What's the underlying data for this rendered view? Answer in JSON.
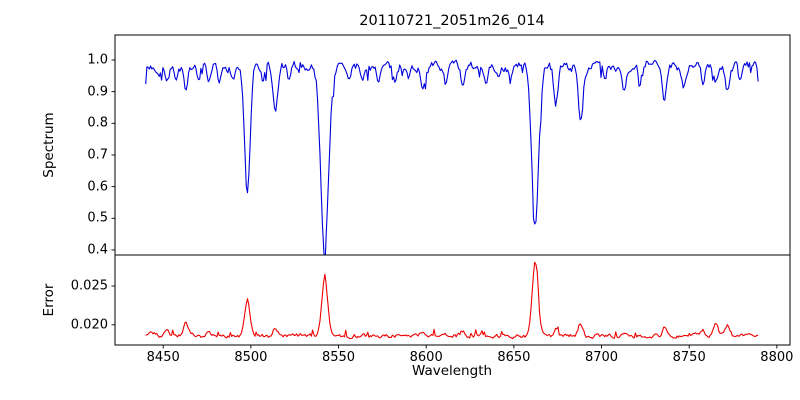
{
  "figure": {
    "background": "#ffffff"
  },
  "chart_data": {
    "type": "line",
    "title": "20110721_2051m26_014",
    "xlabel": "Wavelength",
    "legend": "none",
    "grid": false,
    "xlim": [
      8422.5,
      8807.5
    ],
    "x_data_range": [
      8440,
      8790
    ],
    "sample_step": 0.7,
    "noise_seed": 7,
    "x_ticks": [
      {
        "value": 8450,
        "label": "8450"
      },
      {
        "value": 8500,
        "label": "8500"
      },
      {
        "value": 8550,
        "label": "8550"
      },
      {
        "value": 8600,
        "label": "8600"
      },
      {
        "value": 8650,
        "label": "8650"
      },
      {
        "value": 8700,
        "label": "8700"
      },
      {
        "value": 8750,
        "label": "8750"
      },
      {
        "value": 8800,
        "label": "8800"
      }
    ],
    "panels": [
      {
        "name": "spectrum",
        "ylabel": "Spectrum",
        "ylim": [
          0.384,
          1.079
        ],
        "y_ticks": [
          {
            "value": 1.0,
            "label": "1.0"
          },
          {
            "value": 0.9,
            "label": "0.9"
          },
          {
            "value": 0.8,
            "label": "0.8"
          },
          {
            "value": 0.7,
            "label": "0.7"
          },
          {
            "value": 0.6,
            "label": "0.6"
          },
          {
            "value": 0.5,
            "label": "0.5"
          },
          {
            "value": 0.4,
            "label": "0.4"
          }
        ],
        "line_color": "#0000dd",
        "continuum": 0.98,
        "noise_amplitude": 0.028,
        "absorption_lines": [
          {
            "center": 8447,
            "depth": 0.04,
            "width": 1.0
          },
          {
            "center": 8452,
            "depth": 0.05,
            "width": 1.1
          },
          {
            "center": 8457,
            "depth": 0.04,
            "width": 1.0
          },
          {
            "center": 8463,
            "depth": 0.09,
            "width": 1.2
          },
          {
            "center": 8470,
            "depth": 0.05,
            "width": 1.0
          },
          {
            "center": 8476,
            "depth": 0.07,
            "width": 1.1
          },
          {
            "center": 8482,
            "depth": 0.06,
            "width": 1.1
          },
          {
            "center": 8490,
            "depth": 0.04,
            "width": 1.0
          },
          {
            "center": 8498.0,
            "depth": 0.41,
            "width": 1.6
          },
          {
            "center": 8507,
            "depth": 0.05,
            "width": 1.0
          },
          {
            "center": 8514,
            "depth": 0.15,
            "width": 1.3
          },
          {
            "center": 8522,
            "depth": 0.05,
            "width": 1.0
          },
          {
            "center": 8542.1,
            "depth": 0.575,
            "width": 2.2
          },
          {
            "center": 8556,
            "depth": 0.05,
            "width": 1.1
          },
          {
            "center": 8564,
            "depth": 0.04,
            "width": 1.0
          },
          {
            "center": 8573,
            "depth": 0.04,
            "width": 1.0
          },
          {
            "center": 8582,
            "depth": 0.05,
            "width": 1.1
          },
          {
            "center": 8590,
            "depth": 0.04,
            "width": 1.0
          },
          {
            "center": 8598,
            "depth": 0.07,
            "width": 1.2
          },
          {
            "center": 8611,
            "depth": 0.05,
            "width": 1.0
          },
          {
            "center": 8621,
            "depth": 0.07,
            "width": 1.2
          },
          {
            "center": 8634,
            "depth": 0.04,
            "width": 1.0
          },
          {
            "center": 8641,
            "depth": 0.04,
            "width": 1.0
          },
          {
            "center": 8648,
            "depth": 0.05,
            "width": 1.0
          },
          {
            "center": 8662.2,
            "depth": 0.52,
            "width": 1.9
          },
          {
            "center": 8674,
            "depth": 0.11,
            "width": 1.2
          },
          {
            "center": 8688,
            "depth": 0.16,
            "width": 1.4
          },
          {
            "center": 8702,
            "depth": 0.04,
            "width": 1.0
          },
          {
            "center": 8713,
            "depth": 0.07,
            "width": 1.2
          },
          {
            "center": 8722,
            "depth": 0.04,
            "width": 1.0
          },
          {
            "center": 8736,
            "depth": 0.1,
            "width": 1.3
          },
          {
            "center": 8747,
            "depth": 0.06,
            "width": 1.1
          },
          {
            "center": 8758,
            "depth": 0.05,
            "width": 1.0
          },
          {
            "center": 8765,
            "depth": 0.06,
            "width": 1.1
          },
          {
            "center": 8772,
            "depth": 0.08,
            "width": 1.2
          },
          {
            "center": 8779,
            "depth": 0.05,
            "width": 1.0
          }
        ]
      },
      {
        "name": "error",
        "ylabel": "Error",
        "ylim": [
          0.0174,
          0.029
        ],
        "y_ticks": [
          {
            "value": 0.025,
            "label": "0.025"
          },
          {
            "value": 0.02,
            "label": "0.020"
          }
        ],
        "line_color": "#ee0000",
        "baseline": 0.0186,
        "noise_amplitude": 0.0005,
        "spikes": [
          {
            "center": 8443,
            "amplitude": 0.0007,
            "width": 2.0
          },
          {
            "center": 8452,
            "amplitude": 0.0006,
            "width": 1.2
          },
          {
            "center": 8463,
            "amplitude": 0.0016,
            "width": 1.3
          },
          {
            "center": 8476,
            "amplitude": 0.0008,
            "width": 1.2
          },
          {
            "center": 8498.0,
            "amplitude": 0.0047,
            "width": 1.5
          },
          {
            "center": 8514,
            "amplitude": 0.001,
            "width": 1.2
          },
          {
            "center": 8542.1,
            "amplitude": 0.0072,
            "width": 1.7
          },
          {
            "center": 8598,
            "amplitude": 0.0006,
            "width": 1.2
          },
          {
            "center": 8621,
            "amplitude": 0.0006,
            "width": 1.2
          },
          {
            "center": 8662.2,
            "amplitude": 0.0096,
            "width": 1.6
          },
          {
            "center": 8674,
            "amplitude": 0.0008,
            "width": 1.2
          },
          {
            "center": 8688,
            "amplitude": 0.0015,
            "width": 1.3
          },
          {
            "center": 8713,
            "amplitude": 0.0006,
            "width": 1.1
          },
          {
            "center": 8736,
            "amplitude": 0.001,
            "width": 1.2
          },
          {
            "center": 8758,
            "amplitude": 0.0007,
            "width": 1.1
          },
          {
            "center": 8765,
            "amplitude": 0.0015,
            "width": 1.3
          },
          {
            "center": 8772,
            "amplitude": 0.0012,
            "width": 1.2
          }
        ]
      }
    ]
  }
}
